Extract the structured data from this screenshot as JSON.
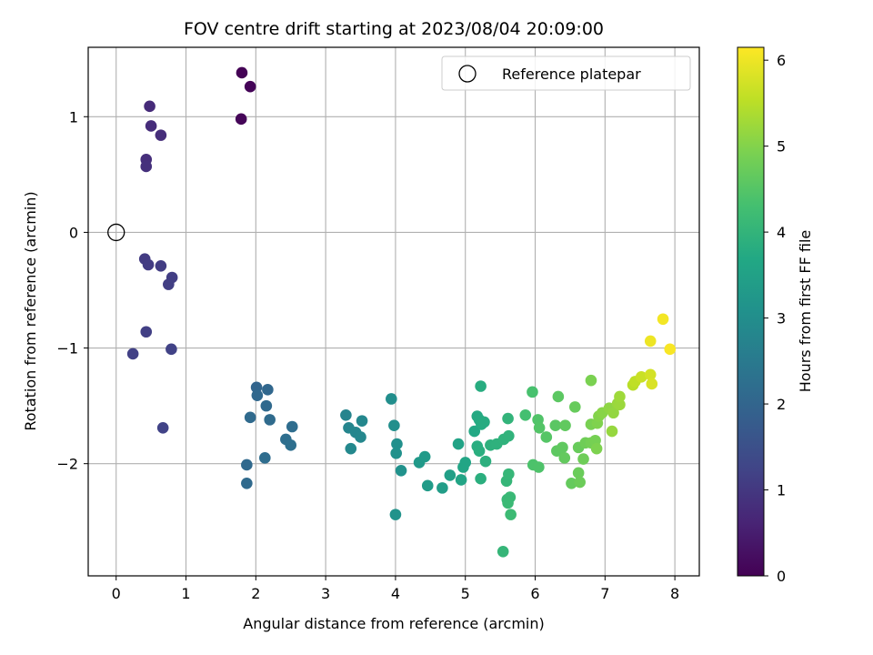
{
  "chart_data": {
    "type": "scatter",
    "title": "FOV centre drift starting at 2023/08/04 20:09:00",
    "xlabel": "Angular distance from reference (arcmin)",
    "ylabel": "Rotation from reference (arcmin)",
    "xlim": [
      -0.4,
      8.35
    ],
    "ylim": [
      -2.97,
      1.6
    ],
    "xticks": [
      0,
      1,
      2,
      3,
      4,
      5,
      6,
      7,
      8
    ],
    "yticks": [
      -2,
      -1,
      0,
      1
    ],
    "grid": true,
    "legend": {
      "position": "top-right",
      "entries": [
        "Reference platepar"
      ]
    },
    "colorbar": {
      "label": "Hours from first FF file",
      "range": [
        0,
        6.15
      ],
      "ticks": [
        0,
        1,
        2,
        3,
        4,
        5,
        6
      ],
      "colormap": "viridis"
    },
    "reference_point": {
      "x": 0,
      "y": 0
    },
    "points": [
      {
        "x": 1.8,
        "y": 1.38,
        "c": 0.02
      },
      {
        "x": 1.92,
        "y": 1.26,
        "c": 0.05
      },
      {
        "x": 1.79,
        "y": 0.98,
        "c": 0.08
      },
      {
        "x": 0.48,
        "y": 1.09,
        "c": 0.75
      },
      {
        "x": 0.5,
        "y": 0.92,
        "c": 0.78
      },
      {
        "x": 0.64,
        "y": 0.84,
        "c": 0.8
      },
      {
        "x": 0.43,
        "y": 0.63,
        "c": 0.82
      },
      {
        "x": 0.43,
        "y": 0.57,
        "c": 0.84
      },
      {
        "x": 0.41,
        "y": -0.23,
        "c": 1.05
      },
      {
        "x": 0.46,
        "y": -0.28,
        "c": 1.08
      },
      {
        "x": 0.64,
        "y": -0.29,
        "c": 1.1
      },
      {
        "x": 0.8,
        "y": -0.39,
        "c": 1.12
      },
      {
        "x": 0.75,
        "y": -0.45,
        "c": 1.14
      },
      {
        "x": 0.43,
        "y": -0.86,
        "c": 1.15
      },
      {
        "x": 0.24,
        "y": -1.05,
        "c": 1.18
      },
      {
        "x": 0.79,
        "y": -1.01,
        "c": 1.2
      },
      {
        "x": 0.67,
        "y": -1.69,
        "c": 1.22
      },
      {
        "x": 2.01,
        "y": -1.34,
        "c": 2.0
      },
      {
        "x": 2.17,
        "y": -1.36,
        "c": 2.05
      },
      {
        "x": 2.02,
        "y": -1.41,
        "c": 2.07
      },
      {
        "x": 2.15,
        "y": -1.5,
        "c": 2.1
      },
      {
        "x": 1.92,
        "y": -1.6,
        "c": 2.12
      },
      {
        "x": 2.2,
        "y": -1.62,
        "c": 2.15
      },
      {
        "x": 2.52,
        "y": -1.68,
        "c": 2.2
      },
      {
        "x": 2.43,
        "y": -1.79,
        "c": 2.22
      },
      {
        "x": 2.5,
        "y": -1.84,
        "c": 2.25
      },
      {
        "x": 2.13,
        "y": -1.95,
        "c": 2.18
      },
      {
        "x": 1.87,
        "y": -2.01,
        "c": 2.1
      },
      {
        "x": 1.87,
        "y": -2.17,
        "c": 2.12
      },
      {
        "x": 3.29,
        "y": -1.58,
        "c": 2.75
      },
      {
        "x": 3.33,
        "y": -1.69,
        "c": 2.78
      },
      {
        "x": 3.43,
        "y": -1.73,
        "c": 2.8
      },
      {
        "x": 3.5,
        "y": -1.77,
        "c": 2.82
      },
      {
        "x": 3.52,
        "y": -1.63,
        "c": 2.84
      },
      {
        "x": 3.36,
        "y": -1.87,
        "c": 2.86
      },
      {
        "x": 3.94,
        "y": -1.44,
        "c": 3.0
      },
      {
        "x": 3.98,
        "y": -1.67,
        "c": 3.02
      },
      {
        "x": 4.02,
        "y": -1.83,
        "c": 3.05
      },
      {
        "x": 4.01,
        "y": -1.91,
        "c": 3.07
      },
      {
        "x": 4.08,
        "y": -2.06,
        "c": 3.1
      },
      {
        "x": 4.0,
        "y": -2.44,
        "c": 3.12
      },
      {
        "x": 4.34,
        "y": -1.99,
        "c": 3.3
      },
      {
        "x": 4.42,
        "y": -1.94,
        "c": 3.32
      },
      {
        "x": 4.46,
        "y": -2.19,
        "c": 3.35
      },
      {
        "x": 4.67,
        "y": -2.21,
        "c": 3.4
      },
      {
        "x": 4.78,
        "y": -2.1,
        "c": 3.45
      },
      {
        "x": 4.9,
        "y": -1.83,
        "c": 3.55
      },
      {
        "x": 4.94,
        "y": -2.14,
        "c": 3.58
      },
      {
        "x": 4.97,
        "y": -2.03,
        "c": 3.6
      },
      {
        "x": 5.0,
        "y": -1.99,
        "c": 3.62
      },
      {
        "x": 5.13,
        "y": -1.72,
        "c": 3.7
      },
      {
        "x": 5.17,
        "y": -1.59,
        "c": 3.72
      },
      {
        "x": 5.2,
        "y": -1.62,
        "c": 3.74
      },
      {
        "x": 5.23,
        "y": -1.66,
        "c": 3.76
      },
      {
        "x": 5.27,
        "y": -1.64,
        "c": 3.78
      },
      {
        "x": 5.22,
        "y": -1.33,
        "c": 3.8
      },
      {
        "x": 5.17,
        "y": -1.85,
        "c": 3.82
      },
      {
        "x": 5.2,
        "y": -1.89,
        "c": 3.84
      },
      {
        "x": 5.22,
        "y": -2.13,
        "c": 3.86
      },
      {
        "x": 5.29,
        "y": -1.98,
        "c": 3.88
      },
      {
        "x": 5.36,
        "y": -1.84,
        "c": 3.9
      },
      {
        "x": 5.45,
        "y": -1.83,
        "c": 3.92
      },
      {
        "x": 5.55,
        "y": -1.79,
        "c": 3.95
      },
      {
        "x": 5.62,
        "y": -1.76,
        "c": 3.97
      },
      {
        "x": 5.61,
        "y": -1.61,
        "c": 3.99
      },
      {
        "x": 5.59,
        "y": -2.15,
        "c": 4.05
      },
      {
        "x": 5.62,
        "y": -2.09,
        "c": 4.07
      },
      {
        "x": 5.6,
        "y": -2.31,
        "c": 4.1
      },
      {
        "x": 5.64,
        "y": -2.29,
        "c": 4.12
      },
      {
        "x": 5.61,
        "y": -2.34,
        "c": 4.15
      },
      {
        "x": 5.65,
        "y": -2.44,
        "c": 4.18
      },
      {
        "x": 5.54,
        "y": -2.76,
        "c": 4.05
      },
      {
        "x": 5.86,
        "y": -1.58,
        "c": 4.3
      },
      {
        "x": 5.96,
        "y": -1.38,
        "c": 4.35
      },
      {
        "x": 5.97,
        "y": -2.01,
        "c": 4.4
      },
      {
        "x": 6.05,
        "y": -2.03,
        "c": 4.42
      },
      {
        "x": 6.04,
        "y": -1.62,
        "c": 4.45
      },
      {
        "x": 6.06,
        "y": -1.69,
        "c": 4.48
      },
      {
        "x": 6.16,
        "y": -1.77,
        "c": 4.5
      },
      {
        "x": 6.29,
        "y": -1.67,
        "c": 4.55
      },
      {
        "x": 6.33,
        "y": -1.42,
        "c": 4.58
      },
      {
        "x": 6.31,
        "y": -1.89,
        "c": 4.6
      },
      {
        "x": 6.39,
        "y": -1.86,
        "c": 4.62
      },
      {
        "x": 6.43,
        "y": -1.67,
        "c": 4.64
      },
      {
        "x": 6.42,
        "y": -1.95,
        "c": 4.66
      },
      {
        "x": 6.52,
        "y": -2.17,
        "c": 4.68
      },
      {
        "x": 6.57,
        "y": -1.51,
        "c": 4.7
      },
      {
        "x": 6.62,
        "y": -1.86,
        "c": 4.72
      },
      {
        "x": 6.62,
        "y": -2.08,
        "c": 4.74
      },
      {
        "x": 6.64,
        "y": -2.16,
        "c": 4.76
      },
      {
        "x": 6.69,
        "y": -1.96,
        "c": 4.78
      },
      {
        "x": 6.72,
        "y": -1.82,
        "c": 4.8
      },
      {
        "x": 6.8,
        "y": -1.82,
        "c": 4.85
      },
      {
        "x": 6.86,
        "y": -1.8,
        "c": 4.88
      },
      {
        "x": 6.8,
        "y": -1.66,
        "c": 4.9
      },
      {
        "x": 6.8,
        "y": -1.28,
        "c": 4.92
      },
      {
        "x": 6.88,
        "y": -1.87,
        "c": 4.95
      },
      {
        "x": 6.89,
        "y": -1.65,
        "c": 4.97
      },
      {
        "x": 6.91,
        "y": -1.59,
        "c": 5.0
      },
      {
        "x": 6.96,
        "y": -1.56,
        "c": 5.05
      },
      {
        "x": 7.06,
        "y": -1.52,
        "c": 5.1
      },
      {
        "x": 7.12,
        "y": -1.56,
        "c": 5.15
      },
      {
        "x": 7.1,
        "y": -1.72,
        "c": 5.18
      },
      {
        "x": 7.18,
        "y": -1.48,
        "c": 5.2
      },
      {
        "x": 7.21,
        "y": -1.49,
        "c": 5.22
      },
      {
        "x": 7.21,
        "y": -1.42,
        "c": 5.25
      },
      {
        "x": 7.4,
        "y": -1.32,
        "c": 5.5
      },
      {
        "x": 7.43,
        "y": -1.29,
        "c": 5.55
      },
      {
        "x": 7.52,
        "y": -1.25,
        "c": 5.65
      },
      {
        "x": 7.65,
        "y": -1.23,
        "c": 5.75
      },
      {
        "x": 7.67,
        "y": -1.31,
        "c": 5.8
      },
      {
        "x": 7.65,
        "y": -0.94,
        "c": 6.0
      },
      {
        "x": 7.83,
        "y": -0.75,
        "c": 6.05
      },
      {
        "x": 7.93,
        "y": -1.01,
        "c": 6.1
      }
    ]
  }
}
